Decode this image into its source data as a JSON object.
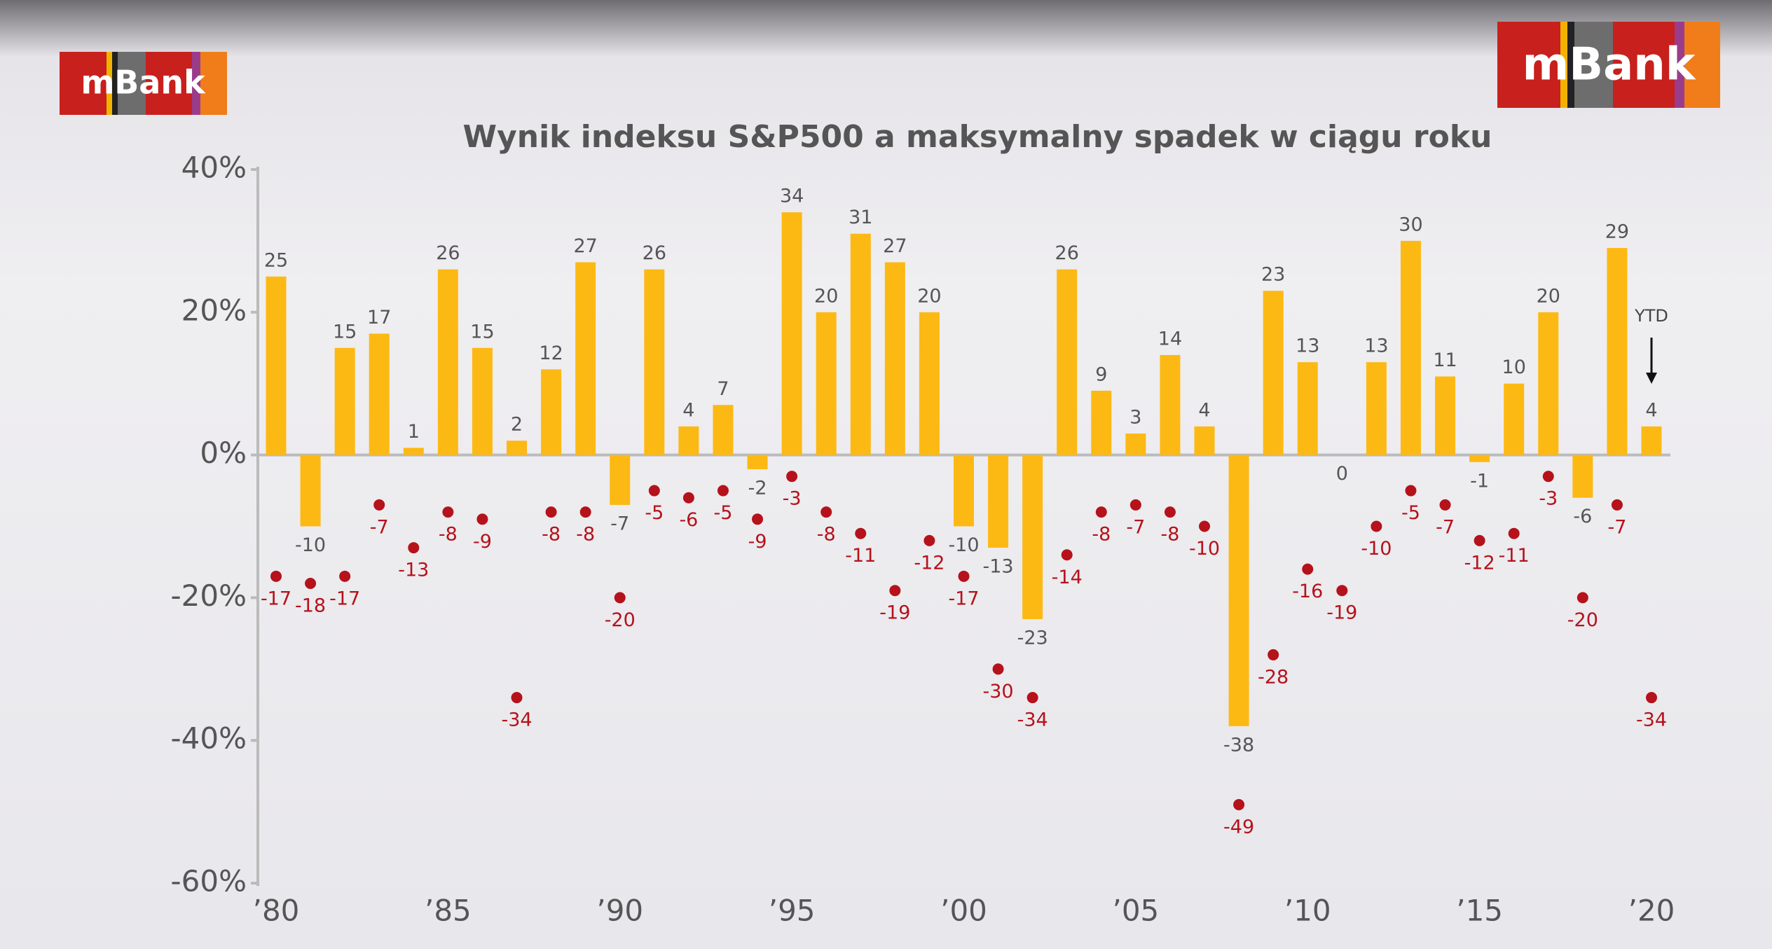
{
  "logos": [
    "mBank",
    "mBank"
  ],
  "chart_data": {
    "type": "bar",
    "title": "Wynik indeksu S&P500 a maksymalny spadek w ciągu roku",
    "annotation": "YTD",
    "categories": [
      "’80",
      null,
      null,
      null,
      null,
      "’85",
      null,
      null,
      null,
      null,
      "’90",
      null,
      null,
      null,
      null,
      "’95",
      null,
      null,
      null,
      null,
      "’00",
      null,
      null,
      null,
      null,
      "’05",
      null,
      null,
      null,
      null,
      "’10",
      null,
      null,
      null,
      null,
      "’15",
      null,
      null,
      null,
      null,
      "’20"
    ],
    "series": [
      {
        "type": "bar",
        "color": "#fdb913",
        "values": [
          25,
          -10,
          15,
          17,
          1,
          26,
          15,
          2,
          12,
          27,
          -7,
          26,
          4,
          7,
          -2,
          34,
          20,
          31,
          27,
          20,
          -10,
          -13,
          -23,
          26,
          9,
          3,
          14,
          4,
          -38,
          23,
          13,
          0,
          13,
          30,
          11,
          -1,
          10,
          20,
          -6,
          29,
          4
        ]
      },
      {
        "type": "scatter",
        "color": "#b5121b",
        "values": [
          -17,
          -18,
          -17,
          -7,
          -13,
          -8,
          -9,
          -34,
          -8,
          -8,
          -20,
          -5,
          -6,
          -5,
          -9,
          -3,
          -8,
          -11,
          -19,
          -12,
          -17,
          -30,
          -34,
          -14,
          -8,
          -7,
          -8,
          -10,
          -49,
          -28,
          -16,
          -19,
          -10,
          -5,
          -7,
          -12,
          -11,
          -3,
          -20,
          -7,
          -34
        ]
      }
    ],
    "ylim": [
      -60,
      40
    ],
    "yticks": [
      {
        "value": -60,
        "label": "-60%"
      },
      {
        "value": -40,
        "label": "-40%"
      },
      {
        "value": -20,
        "label": "-20%"
      },
      {
        "value": 0,
        "label": "0%"
      },
      {
        "value": 20,
        "label": "20%"
      },
      {
        "value": 40,
        "label": "40%"
      }
    ]
  }
}
